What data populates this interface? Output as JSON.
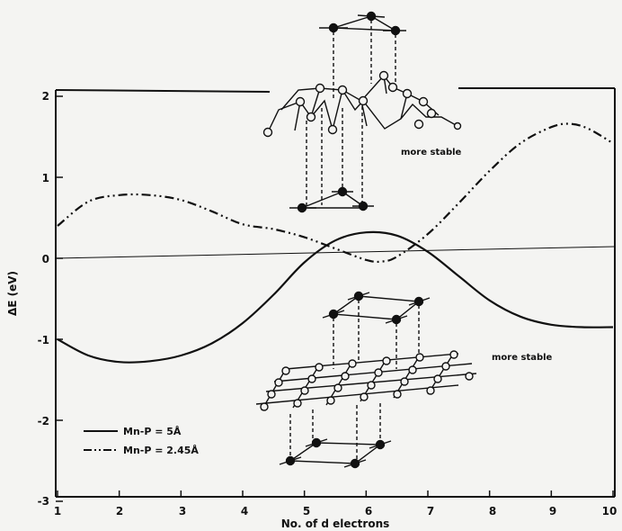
{
  "chart_data": {
    "type": "line",
    "title": "",
    "xlabel": "No. of d electrons",
    "ylabel": "ΔE (eV)",
    "xlim": [
      1,
      10
    ],
    "ylim": [
      -3,
      2
    ],
    "x_ticks": [
      "1",
      "2",
      "3",
      "4",
      "5",
      "6",
      "7",
      "8",
      "9",
      "10"
    ],
    "y_ticks": [
      "2",
      "1",
      "0",
      "-1",
      "-2",
      "-3"
    ],
    "series": [
      {
        "name": "Mn-P = 5Å",
        "style": "solid",
        "x": [
          1.0,
          1.5,
          2.0,
          2.5,
          3.0,
          3.5,
          4.0,
          4.5,
          5.0,
          5.5,
          6.0,
          6.5,
          7.0,
          7.5,
          8.0,
          8.5,
          9.0,
          9.5,
          10.0
        ],
        "y": [
          -1.0,
          -1.2,
          -1.28,
          -1.27,
          -1.2,
          -1.05,
          -0.8,
          -0.45,
          -0.05,
          0.22,
          0.32,
          0.28,
          0.08,
          -0.22,
          -0.52,
          -0.72,
          -0.82,
          -0.85,
          -0.85
        ]
      },
      {
        "name": "Mn-P = 2.45Å",
        "style": "dash-dot-dot",
        "x": [
          1.0,
          1.5,
          2.0,
          2.5,
          3.0,
          3.5,
          4.0,
          4.5,
          5.0,
          5.5,
          6.0,
          6.25,
          6.5,
          7.0,
          7.5,
          8.0,
          8.5,
          9.0,
          9.3,
          9.6,
          10.0
        ],
        "y": [
          0.4,
          0.7,
          0.78,
          0.78,
          0.72,
          0.58,
          0.42,
          0.36,
          0.26,
          0.12,
          -0.02,
          -0.04,
          0.02,
          0.3,
          0.68,
          1.08,
          1.42,
          1.62,
          1.66,
          1.6,
          1.42
        ]
      }
    ],
    "annotations": [
      "more stable",
      "more stable"
    ],
    "legend": {
      "position": "bottom-left",
      "entries": [
        "Mn-P = 5Å",
        "Mn-P = 2.45Å"
      ]
    }
  },
  "colors": {
    "ink": "#111111",
    "paper": "#f4f4f2"
  }
}
